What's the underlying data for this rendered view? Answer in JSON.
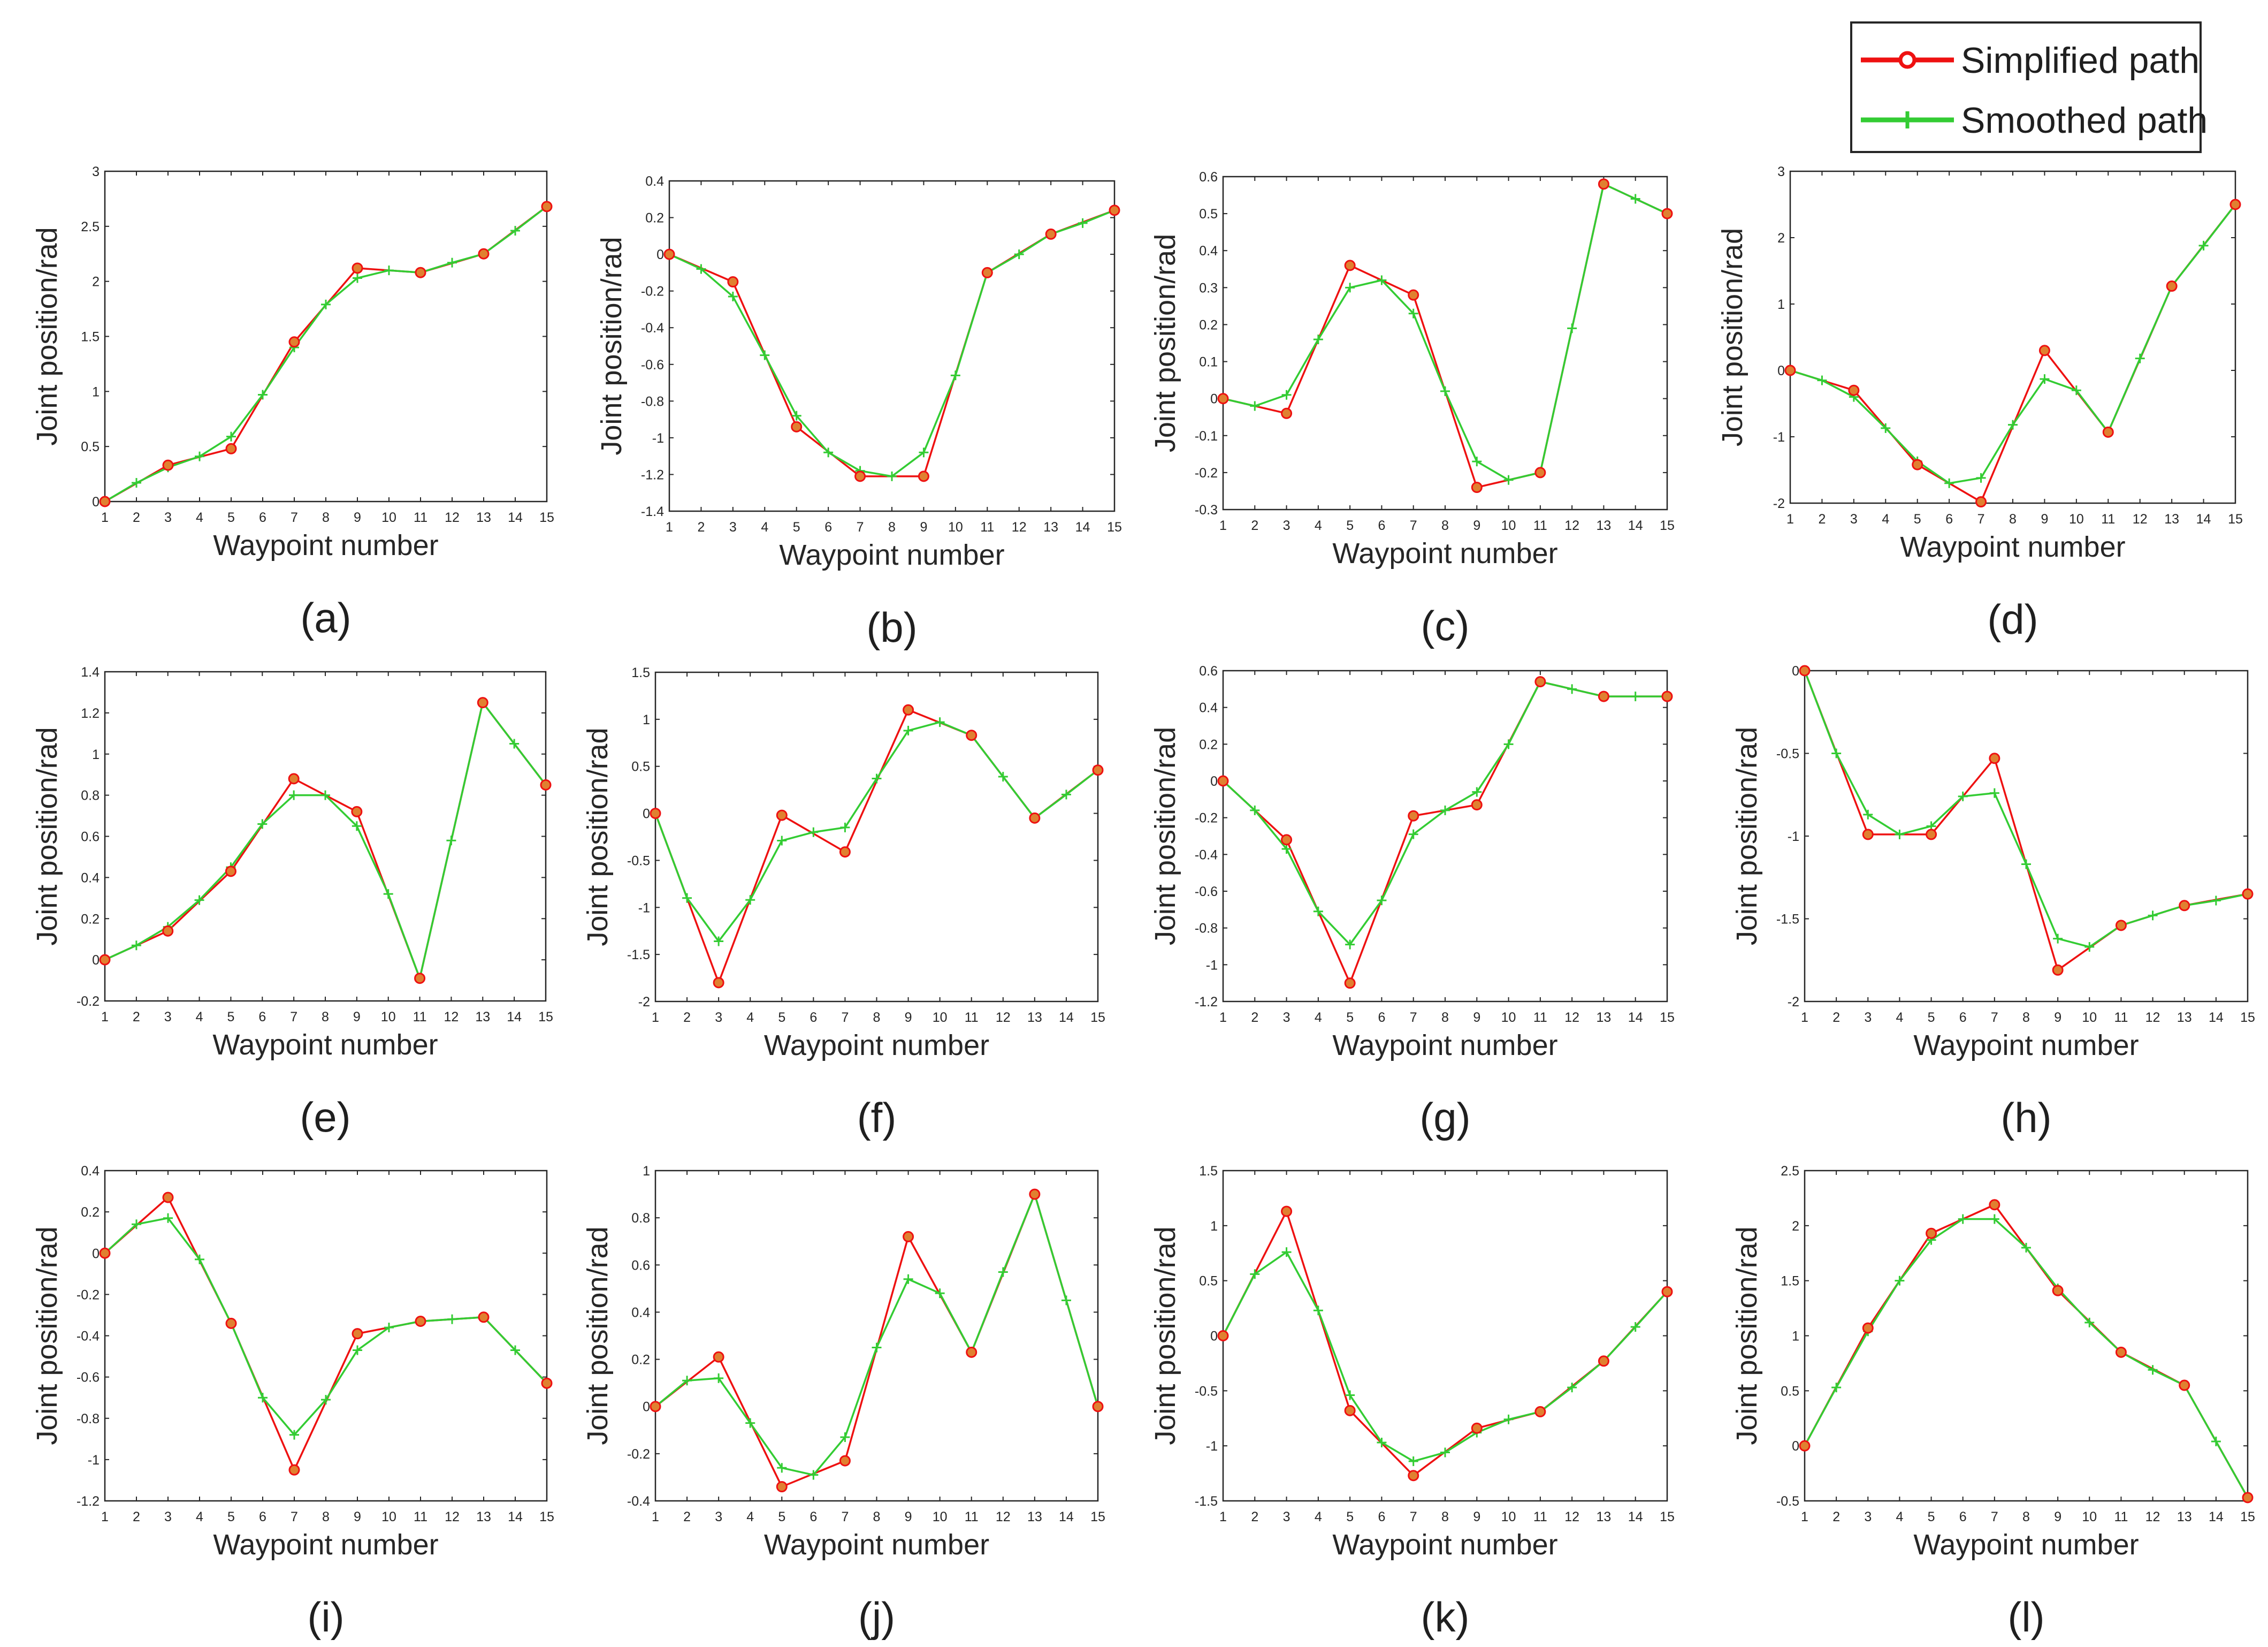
{
  "colors": {
    "simplified": "#ee1111",
    "smoothed": "#33cc33",
    "axis": "#262626",
    "marker_fill": "#e08030"
  },
  "legend": {
    "simplified_label": "Simplified path",
    "smoothed_label": "Smoothed path",
    "simplified_icon": "circle-marker-line-icon",
    "smoothed_icon": "plus-marker-line-icon"
  },
  "chart_data": [
    {
      "label": "(a)",
      "type": "line",
      "xlabel": "Waypoint number",
      "ylabel": "Joint position/rad",
      "xlim": [
        1,
        15
      ],
      "ylim": [
        0,
        3
      ],
      "yticks": [
        0,
        0.5,
        1,
        1.5,
        2,
        2.5,
        3
      ],
      "series": [
        {
          "name": "Simplified path",
          "x": [
            1,
            3,
            5,
            7,
            9,
            11,
            13,
            15
          ],
          "y": [
            0,
            0.33,
            0.48,
            1.45,
            2.12,
            2.08,
            2.25,
            2.68
          ]
        },
        {
          "name": "Smoothed path",
          "x": [
            1,
            2,
            3,
            4,
            5,
            6,
            7,
            8,
            9,
            10,
            11,
            12,
            13,
            14,
            15
          ],
          "y": [
            0,
            0.17,
            0.31,
            0.41,
            0.59,
            0.97,
            1.4,
            1.79,
            2.03,
            2.1,
            2.08,
            2.17,
            2.25,
            2.46,
            2.68
          ]
        }
      ]
    },
    {
      "label": "(b)",
      "type": "line",
      "xlabel": "Waypoint number",
      "ylabel": "Joint position/rad",
      "xlim": [
        1,
        15
      ],
      "ylim": [
        -1.4,
        0.4
      ],
      "yticks": [
        -1.4,
        -1.2,
        -1,
        -0.8,
        -0.6,
        -0.4,
        -0.2,
        0,
        0.2,
        0.4
      ],
      "series": [
        {
          "name": "Simplified path",
          "x": [
            1,
            3,
            5,
            7,
            9,
            11,
            13,
            15
          ],
          "y": [
            0,
            -0.15,
            -0.94,
            -1.21,
            -1.21,
            -0.1,
            0.11,
            0.24
          ]
        },
        {
          "name": "Smoothed path",
          "x": [
            1,
            2,
            3,
            4,
            5,
            6,
            7,
            8,
            9,
            10,
            11,
            12,
            13,
            14,
            15
          ],
          "y": [
            0,
            -0.08,
            -0.23,
            -0.55,
            -0.88,
            -1.08,
            -1.18,
            -1.21,
            -1.08,
            -0.66,
            -0.1,
            0.0,
            0.11,
            0.17,
            0.24
          ]
        }
      ]
    },
    {
      "label": "(c)",
      "type": "line",
      "xlabel": "Waypoint number",
      "ylabel": "Joint position/rad",
      "xlim": [
        1,
        15
      ],
      "ylim": [
        -0.3,
        0.6
      ],
      "yticks": [
        -0.3,
        -0.2,
        -0.1,
        0,
        0.1,
        0.2,
        0.3,
        0.4,
        0.5,
        0.6
      ],
      "series": [
        {
          "name": "Simplified path",
          "x": [
            1,
            3,
            5,
            7,
            9,
            11,
            13,
            15
          ],
          "y": [
            0,
            -0.04,
            0.36,
            0.28,
            -0.24,
            -0.2,
            0.58,
            0.5
          ]
        },
        {
          "name": "Smoothed path",
          "x": [
            1,
            2,
            3,
            4,
            5,
            6,
            7,
            8,
            9,
            10,
            11,
            12,
            13,
            14,
            15
          ],
          "y": [
            0,
            -0.02,
            0.01,
            0.16,
            0.3,
            0.32,
            0.23,
            0.02,
            -0.17,
            -0.22,
            -0.2,
            0.19,
            0.58,
            0.54,
            0.5
          ]
        }
      ]
    },
    {
      "label": "(d)",
      "type": "line",
      "xlabel": "Waypoint number",
      "ylabel": "Joint position/rad",
      "xlim": [
        1,
        15
      ],
      "ylim": [
        -2,
        3
      ],
      "yticks": [
        -2,
        -1,
        0,
        1,
        2,
        3
      ],
      "series": [
        {
          "name": "Simplified path",
          "x": [
            1,
            3,
            5,
            7,
            9,
            11,
            13,
            15
          ],
          "y": [
            0,
            -0.3,
            -1.42,
            -1.98,
            0.3,
            -0.93,
            1.27,
            2.5
          ]
        },
        {
          "name": "Smoothed path",
          "x": [
            1,
            2,
            3,
            4,
            5,
            6,
            7,
            8,
            9,
            10,
            11,
            12,
            13,
            14,
            15
          ],
          "y": [
            0,
            -0.15,
            -0.4,
            -0.87,
            -1.37,
            -1.7,
            -1.62,
            -0.82,
            -0.13,
            -0.3,
            -0.93,
            0.18,
            1.27,
            1.88,
            2.5
          ]
        }
      ]
    },
    {
      "label": "(e)",
      "type": "line",
      "xlabel": "Waypoint number",
      "ylabel": "Joint position/rad",
      "xlim": [
        1,
        15
      ],
      "ylim": [
        -0.2,
        1.4
      ],
      "yticks": [
        -0.2,
        0,
        0.2,
        0.4,
        0.6,
        0.8,
        1,
        1.2,
        1.4
      ],
      "series": [
        {
          "name": "Simplified path",
          "x": [
            1,
            3,
            5,
            7,
            9,
            11,
            13,
            15
          ],
          "y": [
            0,
            0.14,
            0.43,
            0.88,
            0.72,
            -0.09,
            1.25,
            0.85
          ]
        },
        {
          "name": "Smoothed path",
          "x": [
            1,
            2,
            3,
            4,
            5,
            6,
            7,
            8,
            9,
            10,
            11,
            12,
            13,
            14,
            15
          ],
          "y": [
            0,
            0.07,
            0.16,
            0.29,
            0.45,
            0.66,
            0.8,
            0.8,
            0.65,
            0.32,
            -0.09,
            0.58,
            1.25,
            1.05,
            0.85
          ]
        }
      ]
    },
    {
      "label": "(f)",
      "type": "line",
      "xlabel": "Waypoint number",
      "ylabel": "Joint position/rad",
      "xlim": [
        1,
        15
      ],
      "ylim": [
        -2,
        1.5
      ],
      "yticks": [
        -2,
        -1.5,
        -1,
        -0.5,
        0,
        0.5,
        1,
        1.5
      ],
      "series": [
        {
          "name": "Simplified path",
          "x": [
            1,
            3,
            5,
            7,
            9,
            11,
            13,
            15
          ],
          "y": [
            0,
            -1.8,
            -0.02,
            -0.41,
            1.1,
            0.83,
            -0.05,
            0.46
          ]
        },
        {
          "name": "Smoothed path",
          "x": [
            1,
            2,
            3,
            4,
            5,
            6,
            7,
            8,
            9,
            10,
            11,
            12,
            13,
            14,
            15
          ],
          "y": [
            0,
            -0.9,
            -1.36,
            -0.92,
            -0.29,
            -0.2,
            -0.15,
            0.37,
            0.88,
            0.97,
            0.83,
            0.39,
            -0.05,
            0.2,
            0.46
          ]
        }
      ]
    },
    {
      "label": "(g)",
      "type": "line",
      "xlabel": "Waypoint number",
      "ylabel": "Joint position/rad",
      "xlim": [
        1,
        15
      ],
      "ylim": [
        -1.2,
        0.6
      ],
      "yticks": [
        -1.2,
        -1,
        -0.8,
        -0.6,
        -0.4,
        -0.2,
        0,
        0.2,
        0.4,
        0.6
      ],
      "series": [
        {
          "name": "Simplified path",
          "x": [
            1,
            3,
            5,
            7,
            9,
            11,
            13,
            15
          ],
          "y": [
            0,
            -0.32,
            -1.1,
            -0.19,
            -0.13,
            0.54,
            0.46,
            0.46
          ]
        },
        {
          "name": "Smoothed path",
          "x": [
            1,
            2,
            3,
            4,
            5,
            6,
            7,
            8,
            9,
            10,
            11,
            12,
            13,
            14,
            15
          ],
          "y": [
            0,
            -0.16,
            -0.37,
            -0.71,
            -0.89,
            -0.65,
            -0.29,
            -0.16,
            -0.06,
            0.2,
            0.54,
            0.5,
            0.46,
            0.46,
            0.46
          ]
        }
      ]
    },
    {
      "label": "(h)",
      "type": "line",
      "xlabel": "Waypoint number",
      "ylabel": "Joint position/rad",
      "xlim": [
        1,
        15
      ],
      "ylim": [
        -2,
        0
      ],
      "yticks": [
        -2,
        -1.5,
        -1,
        -0.5,
        0
      ],
      "series": [
        {
          "name": "Simplified path",
          "x": [
            1,
            3,
            5,
            7,
            9,
            11,
            13,
            15
          ],
          "y": [
            0,
            -0.99,
            -0.99,
            -0.53,
            -1.81,
            -1.54,
            -1.42,
            -1.35
          ]
        },
        {
          "name": "Smoothed path",
          "x": [
            1,
            2,
            3,
            4,
            5,
            6,
            7,
            8,
            9,
            10,
            11,
            12,
            13,
            14,
            15
          ],
          "y": [
            0,
            -0.5,
            -0.87,
            -0.99,
            -0.94,
            -0.76,
            -0.74,
            -1.17,
            -1.62,
            -1.67,
            -1.54,
            -1.48,
            -1.42,
            -1.39,
            -1.35
          ]
        }
      ]
    },
    {
      "label": "(i)",
      "type": "line",
      "xlabel": "Waypoint number",
      "ylabel": "Joint position/rad",
      "xlim": [
        1,
        15
      ],
      "ylim": [
        -1.2,
        0.4
      ],
      "yticks": [
        -1.2,
        -1,
        -0.8,
        -0.6,
        -0.4,
        -0.2,
        0,
        0.2,
        0.4
      ],
      "series": [
        {
          "name": "Simplified path",
          "x": [
            1,
            3,
            5,
            7,
            9,
            11,
            13,
            15
          ],
          "y": [
            0,
            0.27,
            -0.34,
            -1.05,
            -0.39,
            -0.33,
            -0.31,
            -0.63
          ]
        },
        {
          "name": "Smoothed path",
          "x": [
            1,
            2,
            3,
            4,
            5,
            6,
            7,
            8,
            9,
            10,
            11,
            12,
            13,
            14,
            15
          ],
          "y": [
            0,
            0.14,
            0.17,
            -0.03,
            -0.34,
            -0.7,
            -0.88,
            -0.71,
            -0.47,
            -0.36,
            -0.33,
            -0.32,
            -0.31,
            -0.47,
            -0.63
          ]
        }
      ]
    },
    {
      "label": "(j)",
      "type": "line",
      "xlabel": "Waypoint number",
      "ylabel": "Joint position/rad",
      "xlim": [
        1,
        15
      ],
      "ylim": [
        -0.4,
        1
      ],
      "yticks": [
        -0.4,
        -0.2,
        0,
        0.2,
        0.4,
        0.6,
        0.8,
        1
      ],
      "series": [
        {
          "name": "Simplified path",
          "x": [
            1,
            3,
            5,
            7,
            9,
            11,
            13,
            15
          ],
          "y": [
            0,
            0.21,
            -0.34,
            -0.23,
            0.72,
            0.23,
            0.9,
            0.0
          ]
        },
        {
          "name": "Smoothed path",
          "x": [
            1,
            2,
            3,
            4,
            5,
            6,
            7,
            8,
            9,
            10,
            11,
            12,
            13,
            14,
            15
          ],
          "y": [
            0,
            0.11,
            0.12,
            -0.07,
            -0.26,
            -0.29,
            -0.13,
            0.25,
            0.54,
            0.48,
            0.23,
            0.57,
            0.9,
            0.45,
            0.0
          ]
        }
      ]
    },
    {
      "label": "(k)",
      "type": "line",
      "xlabel": "Waypoint number",
      "ylabel": "Joint position/rad",
      "xlim": [
        1,
        15
      ],
      "ylim": [
        -1.5,
        1.5
      ],
      "yticks": [
        -1.5,
        -1,
        -0.5,
        0,
        0.5,
        1,
        1.5
      ],
      "series": [
        {
          "name": "Simplified path",
          "x": [
            1,
            3,
            5,
            7,
            9,
            11,
            13,
            15
          ],
          "y": [
            0,
            1.13,
            -0.68,
            -1.27,
            -0.84,
            -0.69,
            -0.23,
            0.4
          ]
        },
        {
          "name": "Smoothed path",
          "x": [
            1,
            2,
            3,
            4,
            5,
            6,
            7,
            8,
            9,
            10,
            11,
            12,
            13,
            14,
            15
          ],
          "y": [
            0,
            0.56,
            0.76,
            0.23,
            -0.54,
            -0.97,
            -1.14,
            -1.06,
            -0.88,
            -0.76,
            -0.69,
            -0.47,
            -0.23,
            0.08,
            0.4
          ]
        }
      ]
    },
    {
      "label": "(l)",
      "type": "line",
      "xlabel": "Waypoint number",
      "ylabel": "Joint position/rad",
      "xlim": [
        1,
        15
      ],
      "ylim": [
        -0.5,
        2.5
      ],
      "yticks": [
        -0.5,
        0,
        0.5,
        1,
        1.5,
        2,
        2.5
      ],
      "series": [
        {
          "name": "Simplified path",
          "x": [
            1,
            3,
            5,
            7,
            9,
            11,
            13,
            15
          ],
          "y": [
            0,
            1.07,
            1.93,
            2.19,
            1.41,
            0.85,
            0.55,
            -0.47
          ]
        },
        {
          "name": "Smoothed path",
          "x": [
            1,
            2,
            3,
            4,
            5,
            6,
            7,
            8,
            9,
            10,
            11,
            12,
            13,
            14,
            15
          ],
          "y": [
            0,
            0.53,
            1.04,
            1.5,
            1.87,
            2.06,
            2.06,
            1.8,
            1.43,
            1.12,
            0.85,
            0.69,
            0.55,
            0.04,
            -0.47
          ]
        }
      ]
    }
  ]
}
